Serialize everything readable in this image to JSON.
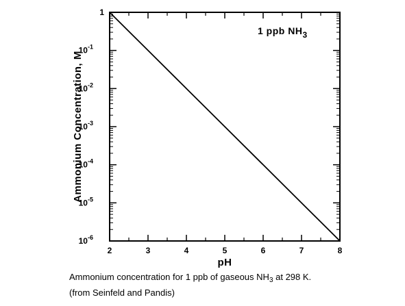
{
  "chart_data": {
    "type": "line",
    "title": "",
    "annotation": {
      "text": "1 ppb NH",
      "subscript": "3"
    },
    "xlabel": "pH",
    "ylabel": "Ammonium Concentration, M",
    "xlim": [
      2,
      8
    ],
    "ylim": [
      1e-06,
      1
    ],
    "yscale": "log",
    "grid": false,
    "x_ticks": [
      "2",
      "3",
      "4",
      "5",
      "6",
      "7",
      "8"
    ],
    "y_ticks": [
      {
        "value": 1,
        "base": "1",
        "exp": ""
      },
      {
        "value": 0.1,
        "base": "10",
        "exp": "-1"
      },
      {
        "value": 0.01,
        "base": "10",
        "exp": "-2"
      },
      {
        "value": 0.001,
        "base": "10",
        "exp": "-3"
      },
      {
        "value": 0.0001,
        "base": "10",
        "exp": "-4"
      },
      {
        "value": 1e-05,
        "base": "10",
        "exp": "-5"
      },
      {
        "value": 1e-06,
        "base": "10",
        "exp": "-6"
      }
    ],
    "series": [
      {
        "x": [
          2,
          3,
          4,
          5,
          6,
          7,
          8
        ],
        "y": [
          1,
          0.1,
          0.01,
          0.001,
          0.0001,
          1e-05,
          1e-06
        ]
      }
    ]
  },
  "caption": {
    "line1_pre": "Ammonium concentration for 1 ppb of gaseous NH",
    "line1_sub": "3",
    "line1_post": " at 298 K.",
    "line2": "(from Seinfeld and Pandis)"
  }
}
